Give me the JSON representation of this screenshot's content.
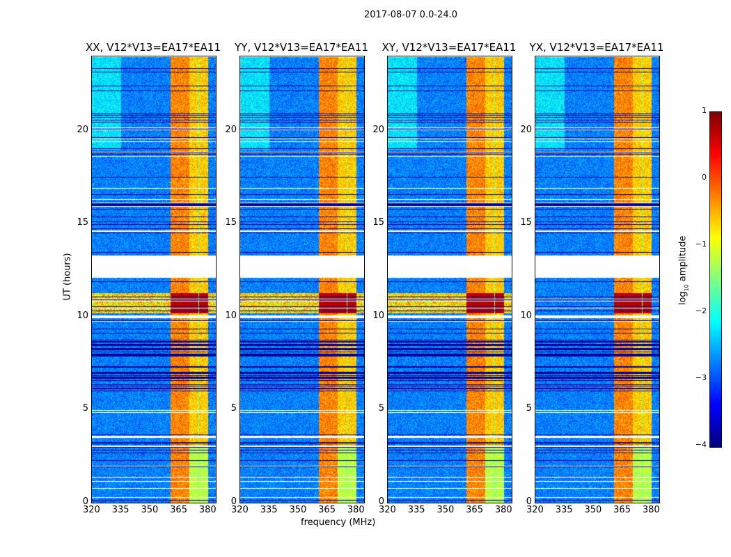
{
  "suptitle": "2017-08-07 0.0-24.0",
  "chart_data": {
    "type": "heatmap",
    "title": "2017-08-07 0.0-24.0",
    "xlabel": "frequency (MHz)",
    "ylabel": "UT (hours)",
    "xlim": [
      320,
      384
    ],
    "ylim": [
      0,
      24
    ],
    "xticks": [
      "320",
      "335",
      "350",
      "365",
      "380"
    ],
    "xtick_values": [
      320,
      335,
      350,
      365,
      380
    ],
    "yticks": [
      "0",
      "5",
      "10",
      "15",
      "20"
    ],
    "ytick_values": [
      0,
      5,
      10,
      15,
      20
    ],
    "panels": [
      {
        "title": "XX, V12*V13=EA17*EA11"
      },
      {
        "title": "YY, V12*V13=EA17*EA11"
      },
      {
        "title": "XY, V12*V13=EA17*EA11"
      },
      {
        "title": "YX, V12*V13=EA17*EA11"
      }
    ],
    "bright_subbands_mhz": [
      [
        360.5,
        365
      ],
      [
        365.2,
        370
      ],
      [
        370.2,
        375
      ],
      [
        375.3,
        380
      ]
    ],
    "data_gaps_hours": [
      [
        12.1,
        13.3
      ],
      [
        3.5,
        3.6
      ],
      [
        3.0,
        3.1
      ],
      [
        9.95,
        10.1
      ]
    ],
    "strong_interval_hours": [
      10.2,
      11.3
    ],
    "colorbar": {
      "label": "log10 amplitude",
      "label_base": "log",
      "label_sub": "10",
      "label_rest": " amplitude",
      "range": [
        -4,
        1
      ],
      "ticks": [
        "1",
        "0",
        "−1",
        "−2",
        "−3",
        "−4"
      ],
      "tick_values": [
        1,
        0,
        -1,
        -2,
        -3,
        -4
      ],
      "colormap": "jet"
    }
  }
}
